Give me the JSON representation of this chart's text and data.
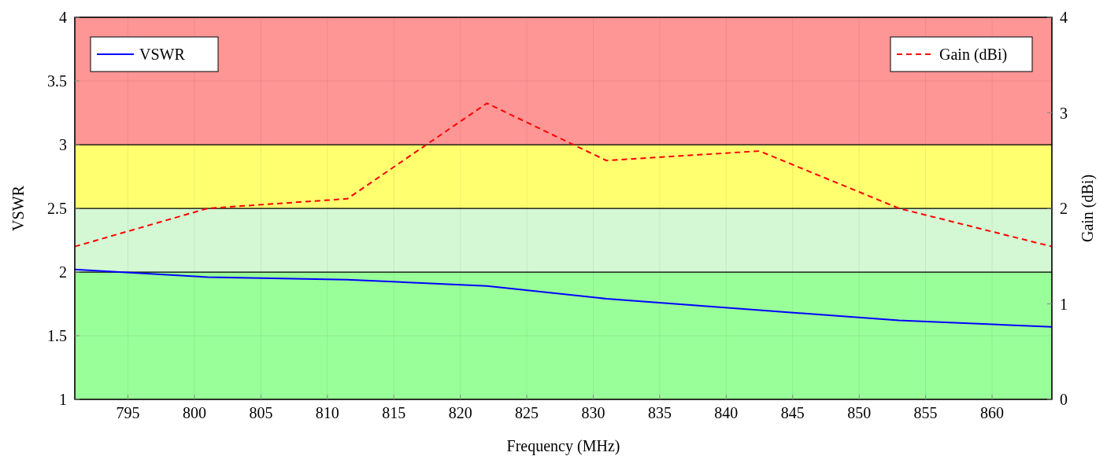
{
  "chart_data": {
    "type": "line",
    "xlabel": "Frequency (MHz)",
    "ylabel": "VSWR",
    "y2label": "Gain (dBi)",
    "x": [
      791,
      801,
      811.5,
      822,
      831,
      842.5,
      853,
      864.5
    ],
    "series": [
      {
        "name": "VSWR",
        "color": "#0000ff",
        "line_style": "solid",
        "values": [
          2.02,
          1.96,
          1.94,
          1.89,
          1.79,
          1.7,
          1.62,
          1.57
        ]
      },
      {
        "name": "Gain (dBi)",
        "color": "#ff0000",
        "line_style": "dashed",
        "axis": "y2",
        "values": [
          1.6,
          2.0,
          2.1,
          3.1,
          2.5,
          2.6,
          2.0,
          1.6
        ]
      }
    ],
    "xlim": [
      791,
      864.5
    ],
    "xticks": [
      795,
      800,
      805,
      810,
      815,
      820,
      825,
      830,
      835,
      840,
      845,
      850,
      855,
      860
    ],
    "ylim": [
      1,
      4
    ],
    "yticks": [
      1,
      1.5,
      2,
      2.5,
      3,
      3.5,
      4
    ],
    "y2lim": [
      0,
      4
    ],
    "y2ticks": [
      0,
      1,
      2,
      3,
      4
    ],
    "bands": [
      {
        "axis": "y",
        "from": 1,
        "to": 2,
        "color": "#99ff99"
      },
      {
        "axis": "y",
        "from": 2,
        "to": 2.5,
        "color": "#d4f7d4"
      },
      {
        "axis": "y",
        "from": 2.5,
        "to": 3,
        "color": "#ffff70"
      },
      {
        "axis": "y",
        "from": 3,
        "to": 4,
        "color": "#ff9696"
      }
    ],
    "grid": true,
    "legend": "top"
  }
}
